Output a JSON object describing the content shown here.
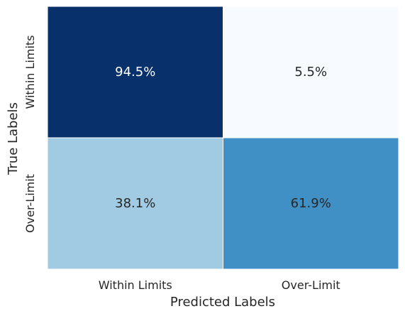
{
  "chart_data": {
    "type": "heatmap",
    "title": "",
    "xlabel": "Predicted Labels",
    "ylabel": "True Labels",
    "x_categories": [
      "Within Limits",
      "Over-Limit"
    ],
    "y_categories": [
      "Within Limits",
      "Over-Limit"
    ],
    "values": [
      [
        94.5,
        5.5
      ],
      [
        38.1,
        61.9
      ]
    ],
    "value_labels": [
      [
        "94.5%",
        "5.5%"
      ],
      [
        "38.1%",
        "61.9%"
      ]
    ],
    "colormap": "Blues",
    "colorbar": false,
    "grid": false
  }
}
